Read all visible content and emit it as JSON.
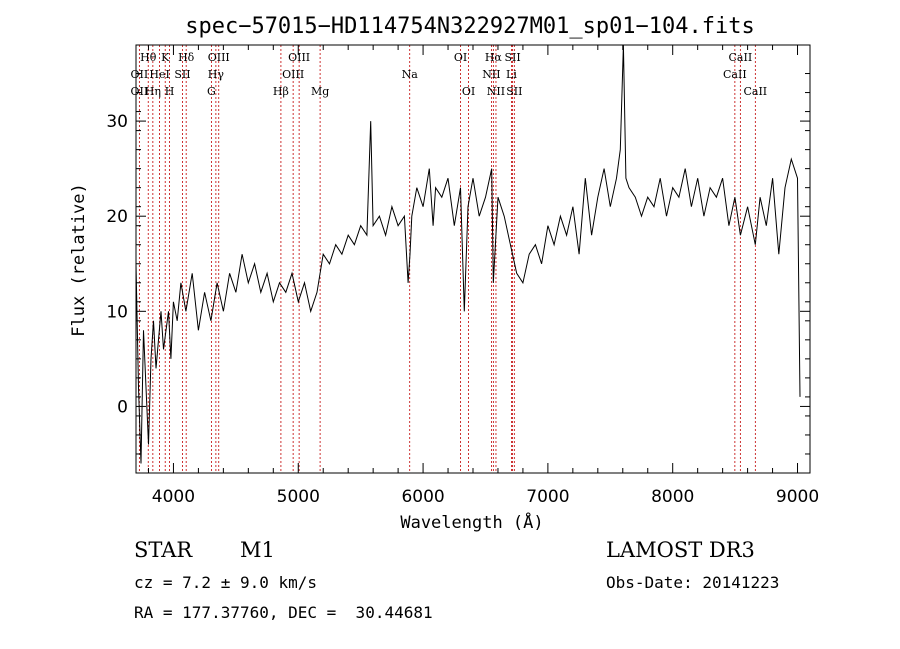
{
  "chart_data": {
    "type": "line",
    "title": "spec−57015−HD114754N322927M01_sp01−104.fits",
    "xlabel": "Wavelength (Å)",
    "ylabel": "Flux (relative)",
    "xlim": [
      3700,
      9100
    ],
    "ylim": [
      -7,
      38
    ],
    "xticks": [
      4000,
      5000,
      6000,
      7000,
      8000,
      9000
    ],
    "yticks": [
      0,
      10,
      20,
      30
    ],
    "grid": false,
    "series": [
      {
        "x": [
          3700,
          3720,
          3740,
          3760,
          3780,
          3800,
          3820,
          3840,
          3860,
          3880,
          3900,
          3920,
          3940,
          3960,
          3980,
          4000,
          4030,
          4060,
          4100,
          4150,
          4200,
          4250,
          4300,
          4350,
          4400,
          4450,
          4500,
          4550,
          4600,
          4650,
          4700,
          4750,
          4800,
          4850,
          4900,
          4950,
          5000,
          5050,
          5100,
          5150,
          5200,
          5250,
          5300,
          5350,
          5400,
          5450,
          5500,
          5550,
          5580,
          5600,
          5650,
          5700,
          5750,
          5800,
          5850,
          5880,
          5895,
          5910,
          5950,
          6000,
          6050,
          6080,
          6100,
          6150,
          6200,
          6250,
          6300,
          6330,
          6360,
          6400,
          6450,
          6500,
          6550,
          6563,
          6600,
          6650,
          6700,
          6750,
          6800,
          6850,
          6900,
          6950,
          7000,
          7050,
          7100,
          7150,
          7200,
          7250,
          7300,
          7350,
          7400,
          7450,
          7500,
          7550,
          7580,
          7605,
          7625,
          7650,
          7700,
          7750,
          7800,
          7850,
          7900,
          7950,
          8000,
          8050,
          8100,
          8150,
          8200,
          8250,
          8300,
          8350,
          8400,
          8450,
          8498,
          8542,
          8600,
          8662,
          8700,
          8750,
          8800,
          8850,
          8900,
          8950,
          9000,
          9020
        ],
        "values": [
          15,
          2,
          -6,
          8,
          2,
          -4,
          5,
          9,
          4,
          7,
          10,
          6,
          8,
          10,
          5,
          11,
          9,
          13,
          10,
          14,
          8,
          12,
          9,
          13,
          10,
          14,
          12,
          16,
          13,
          15,
          12,
          14,
          11,
          13,
          12,
          14,
          11,
          13,
          10,
          12,
          16,
          15,
          17,
          16,
          18,
          17,
          19,
          18,
          30,
          19,
          20,
          18,
          21,
          19,
          20,
          13,
          16,
          20,
          23,
          21,
          25,
          19,
          23,
          22,
          24,
          19,
          23,
          10,
          21,
          24,
          20,
          22,
          25,
          13,
          22,
          20,
          17,
          14,
          13,
          16,
          17,
          15,
          19,
          17,
          20,
          18,
          21,
          16,
          24,
          18,
          22,
          25,
          21,
          24,
          27,
          38,
          24,
          23,
          22,
          20,
          22,
          21,
          24,
          20,
          23,
          22,
          25,
          21,
          24,
          20,
          23,
          22,
          24,
          19,
          22,
          18,
          21,
          17,
          22,
          19,
          24,
          16,
          23,
          26,
          24,
          1
        ]
      }
    ],
    "lines": [
      {
        "label": "Hθ",
        "x": 3798,
        "row": 1
      },
      {
        "label": "OII",
        "x": 3727,
        "row": 2
      },
      {
        "label": "OII",
        "x": 3727,
        "row": 3
      },
      {
        "label": "K",
        "x": 3934,
        "row": 1
      },
      {
        "label": "HeI",
        "x": 3889,
        "row": 2
      },
      {
        "label": "Hη",
        "x": 3835,
        "row": 3
      },
      {
        "label": "Hδ",
        "x": 4102,
        "row": 1
      },
      {
        "label": "SII",
        "x": 4072,
        "row": 2
      },
      {
        "label": "H",
        "x": 3969,
        "row": 3
      },
      {
        "label": "OIII",
        "x": 4363,
        "row": 1
      },
      {
        "label": "Hγ",
        "x": 4340,
        "row": 2
      },
      {
        "label": "G",
        "x": 4304,
        "row": 3
      },
      {
        "label": "Hβ",
        "x": 4861,
        "row": 3
      },
      {
        "label": "OIII",
        "x": 5007,
        "row": 1
      },
      {
        "label": "OIII",
        "x": 4959,
        "row": 2
      },
      {
        "label": "Mg",
        "x": 5175,
        "row": 3
      },
      {
        "label": "Na",
        "x": 5893,
        "row": 2
      },
      {
        "label": "OI",
        "x": 6300,
        "row": 1
      },
      {
        "label": "OI",
        "x": 6364,
        "row": 3
      },
      {
        "label": "Hα",
        "x": 6563,
        "row": 1
      },
      {
        "label": "SII",
        "x": 6717,
        "row": 1
      },
      {
        "label": "NII",
        "x": 6548,
        "row": 2
      },
      {
        "label": "Li",
        "x": 6708,
        "row": 2
      },
      {
        "label": "NII",
        "x": 6584,
        "row": 3
      },
      {
        "label": "SII",
        "x": 6731,
        "row": 3
      },
      {
        "label": "CaII",
        "x": 8542,
        "row": 1
      },
      {
        "label": "CaII",
        "x": 8498,
        "row": 2
      },
      {
        "label": "CaII",
        "x": 8662,
        "row": 3
      }
    ]
  },
  "info": {
    "object_type": "STAR",
    "subclass": "M1",
    "survey": "LAMOST DR3",
    "redshift": "cz = 7.2 ± 9.0 km/s",
    "obs_date": "Obs-Date: 20141223",
    "coords": "RA = 177.37760, DEC =  30.44681"
  },
  "colors": {
    "line_marker": "#c00000",
    "spectrum": "#000000"
  }
}
